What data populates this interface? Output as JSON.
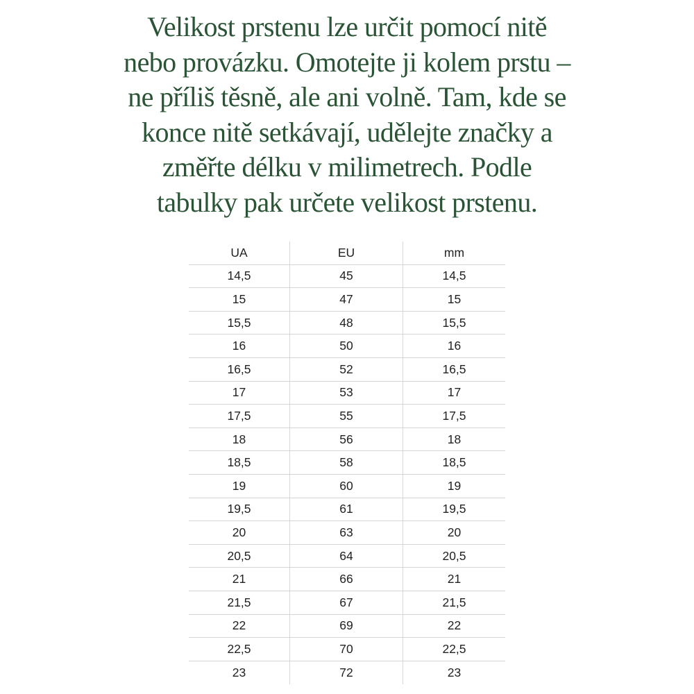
{
  "intro": {
    "lines": [
      "Velikost prstenu lze určit pomocí nitě",
      "nebo provázku. Omotejte ji kolem prstu –",
      "ne příliš těsně, ale ani volně. Tam, kde se",
      "konce nitě setkávají, udělejte značky a",
      "změřte délku v milimetrech. Podle",
      "tabulky pak určete velikost prstenu."
    ],
    "color": "#2b5436"
  },
  "table": {
    "headers": [
      "UA",
      "EU",
      "mm"
    ],
    "rows": [
      [
        "14,5",
        "45",
        "14,5"
      ],
      [
        "15",
        "47",
        "15"
      ],
      [
        "15,5",
        "48",
        "15,5"
      ],
      [
        "16",
        "50",
        "16"
      ],
      [
        "16,5",
        "52",
        "16,5"
      ],
      [
        "17",
        "53",
        "17"
      ],
      [
        "17,5",
        "55",
        "17,5"
      ],
      [
        "18",
        "56",
        "18"
      ],
      [
        "18,5",
        "58",
        "18,5"
      ],
      [
        "19",
        "60",
        "19"
      ],
      [
        "19,5",
        "61",
        "19,5"
      ],
      [
        "20",
        "63",
        "20"
      ],
      [
        "20,5",
        "64",
        "20,5"
      ],
      [
        "21",
        "66",
        "21"
      ],
      [
        "21,5",
        "67",
        "21,5"
      ],
      [
        "22",
        "69",
        "22"
      ],
      [
        "22,5",
        "70",
        "22,5"
      ],
      [
        "23",
        "72",
        "23"
      ]
    ]
  }
}
